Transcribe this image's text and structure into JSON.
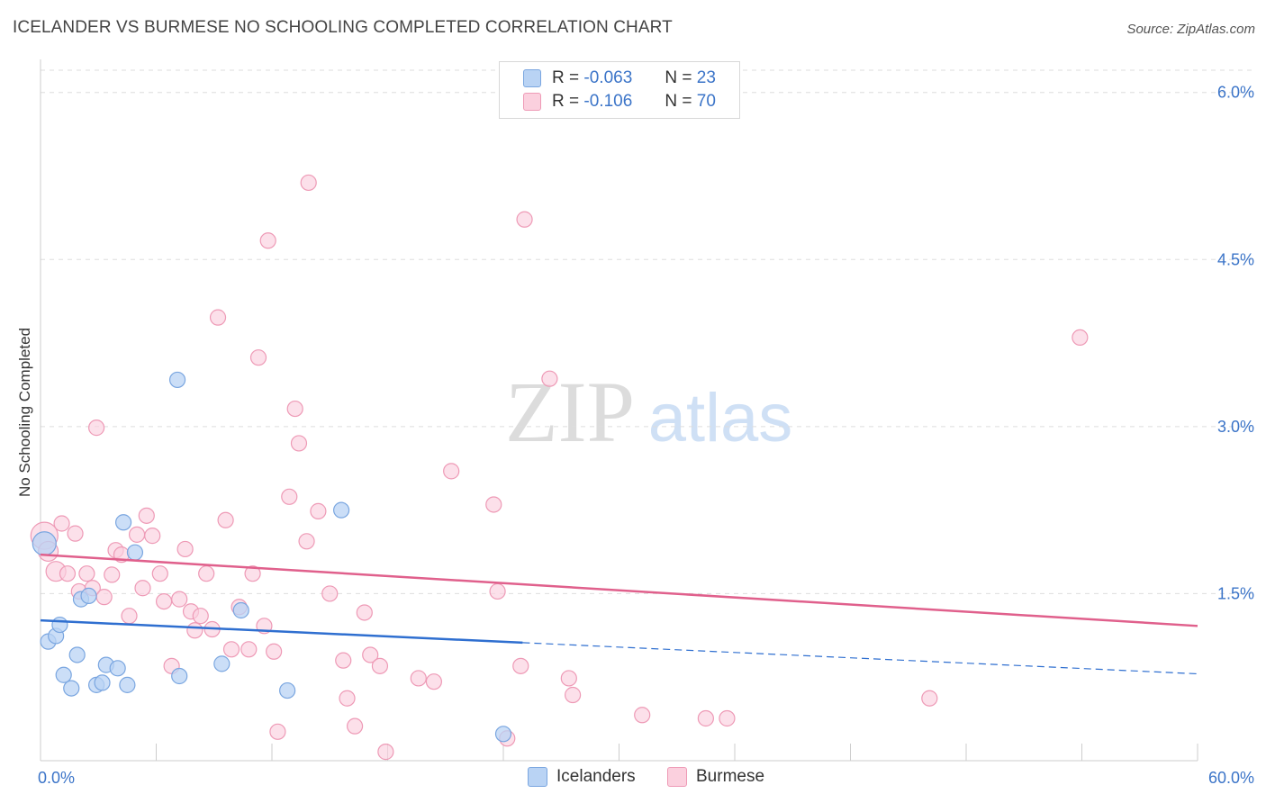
{
  "title": "ICELANDER VS BURMESE NO SCHOOLING COMPLETED CORRELATION CHART",
  "source": "Source: ZipAtlas.com",
  "watermark": {
    "part1": "ZIP",
    "part2": "atlas"
  },
  "legend": {
    "rows": [
      {
        "r_label": "R =",
        "r_value": "-0.063",
        "n_label": "N =",
        "n_value": "23"
      },
      {
        "r_label": "R =",
        "r_value": "-0.106",
        "n_label": "N =",
        "n_value": "70"
      }
    ]
  },
  "series_labels": [
    "Icelanders",
    "Burmese"
  ],
  "colors": {
    "blue_fill": "#b9d3f4",
    "blue_stroke": "#7aa6e0",
    "blue_line": "#2f6fd0",
    "pink_fill": "#fbd0de",
    "pink_stroke": "#ee9ab6",
    "pink_line": "#e0608c",
    "tick_text": "#3b74c8",
    "grid": "#dddddd"
  },
  "chart_data": {
    "type": "scatter",
    "title": "ICELANDER VS BURMESE NO SCHOOLING COMPLETED CORRELATION CHART",
    "xlabel": "",
    "ylabel": "No Schooling Completed",
    "xlim": [
      0,
      60
    ],
    "ylim": [
      0,
      6.2
    ],
    "x_tick_labels": [
      "0.0%",
      "60.0%"
    ],
    "y_ticks": [
      1.5,
      3.0,
      4.5,
      6.0
    ],
    "y_tick_labels": [
      "1.5%",
      "3.0%",
      "4.5%",
      "6.0%"
    ],
    "grid": true,
    "legend_placement": "top-center",
    "series": [
      {
        "name": "Icelanders",
        "r": -0.063,
        "n": 23,
        "trend": {
          "x_start": 0,
          "y_start": 1.26,
          "x_solid_end": 25,
          "y_solid_end": 1.06,
          "x_end": 60,
          "y_end": 0.78
        },
        "points": [
          [
            0.2,
            1.95
          ],
          [
            0.4,
            1.07
          ],
          [
            0.8,
            1.12
          ],
          [
            1.0,
            1.22
          ],
          [
            1.2,
            0.77
          ],
          [
            1.6,
            0.65
          ],
          [
            1.9,
            0.95
          ],
          [
            2.1,
            1.45
          ],
          [
            2.5,
            1.48
          ],
          [
            2.9,
            0.68
          ],
          [
            3.2,
            0.7
          ],
          [
            3.4,
            0.86
          ],
          [
            4.0,
            0.83
          ],
          [
            4.3,
            2.14
          ],
          [
            4.5,
            0.68
          ],
          [
            4.9,
            1.87
          ],
          [
            7.1,
            3.42
          ],
          [
            7.2,
            0.76
          ],
          [
            9.4,
            0.87
          ],
          [
            10.4,
            1.35
          ],
          [
            12.8,
            0.63
          ],
          [
            15.6,
            2.25
          ],
          [
            24.0,
            0.24
          ]
        ]
      },
      {
        "name": "Burmese",
        "r": -0.106,
        "n": 70,
        "trend": {
          "x_start": 0,
          "y_start": 1.85,
          "x_end": 60,
          "y_end": 1.21
        },
        "points": [
          [
            0.2,
            2.02
          ],
          [
            0.4,
            1.88
          ],
          [
            0.8,
            1.7
          ],
          [
            1.1,
            2.13
          ],
          [
            1.4,
            1.68
          ],
          [
            1.8,
            2.04
          ],
          [
            2.0,
            1.52
          ],
          [
            2.4,
            1.68
          ],
          [
            2.7,
            1.55
          ],
          [
            2.9,
            2.99
          ],
          [
            3.3,
            1.47
          ],
          [
            3.7,
            1.67
          ],
          [
            3.9,
            1.89
          ],
          [
            4.2,
            1.85
          ],
          [
            4.6,
            1.3
          ],
          [
            5.0,
            2.03
          ],
          [
            5.3,
            1.55
          ],
          [
            5.5,
            2.2
          ],
          [
            5.8,
            2.02
          ],
          [
            6.2,
            1.68
          ],
          [
            6.4,
            1.43
          ],
          [
            6.8,
            0.85
          ],
          [
            7.2,
            1.45
          ],
          [
            7.5,
            1.9
          ],
          [
            7.8,
            1.34
          ],
          [
            8.0,
            1.17
          ],
          [
            8.3,
            1.3
          ],
          [
            8.6,
            1.68
          ],
          [
            8.9,
            1.18
          ],
          [
            9.2,
            3.98
          ],
          [
            9.6,
            2.16
          ],
          [
            9.9,
            1.0
          ],
          [
            10.3,
            1.38
          ],
          [
            10.8,
            1.0
          ],
          [
            11.0,
            1.68
          ],
          [
            11.3,
            3.62
          ],
          [
            11.6,
            1.21
          ],
          [
            11.8,
            4.67
          ],
          [
            12.1,
            0.98
          ],
          [
            12.3,
            0.26
          ],
          [
            12.9,
            2.37
          ],
          [
            13.2,
            3.16
          ],
          [
            13.4,
            2.85
          ],
          [
            13.8,
            1.97
          ],
          [
            13.9,
            5.19
          ],
          [
            14.4,
            2.24
          ],
          [
            15.0,
            1.5
          ],
          [
            15.7,
            0.9
          ],
          [
            15.9,
            0.56
          ],
          [
            16.3,
            0.31
          ],
          [
            16.8,
            1.33
          ],
          [
            17.1,
            0.95
          ],
          [
            17.6,
            0.85
          ],
          [
            17.9,
            0.08
          ],
          [
            19.6,
            0.74
          ],
          [
            20.4,
            0.71
          ],
          [
            21.3,
            2.6
          ],
          [
            23.5,
            2.3
          ],
          [
            23.7,
            1.52
          ],
          [
            24.2,
            0.2
          ],
          [
            24.9,
            0.85
          ],
          [
            25.1,
            4.86
          ],
          [
            26.4,
            3.43
          ],
          [
            27.4,
            0.74
          ],
          [
            27.6,
            0.59
          ],
          [
            31.2,
            0.41
          ],
          [
            34.5,
            0.38
          ],
          [
            35.6,
            0.38
          ],
          [
            46.1,
            0.56
          ],
          [
            53.9,
            3.8
          ]
        ]
      }
    ]
  }
}
